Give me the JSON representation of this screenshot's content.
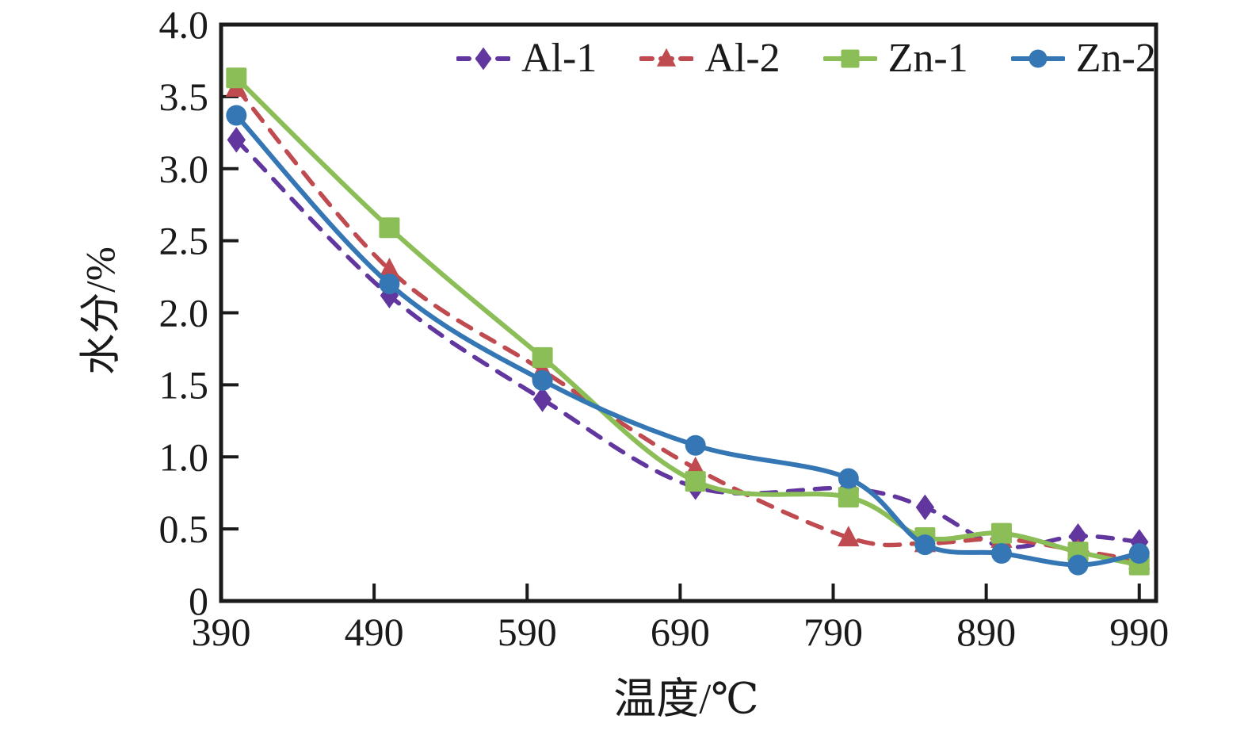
{
  "figure": {
    "background": "#ffffff",
    "frame_color": "#1a1a1a",
    "text_color": "#1a1a1a"
  },
  "chart_data": {
    "type": "line",
    "title": "",
    "xlabel": "温度/℃",
    "ylabel": "水分/%",
    "xlim": [
      390,
      1001
    ],
    "ylim": [
      0,
      4.0
    ],
    "x_ticks": [
      390,
      490,
      590,
      690,
      790,
      890,
      990
    ],
    "y_ticks": [
      "0",
      "0.5",
      "1.0",
      "1.5",
      "2.0",
      "2.5",
      "3.0",
      "3.5",
      "4.0"
    ],
    "grid": false,
    "legend_position": "top-inside",
    "x": [
      400,
      500,
      600,
      700,
      800,
      850,
      900,
      950,
      990
    ],
    "series": [
      {
        "name": "Al-1",
        "color": "#61369E",
        "line_style": "dashed",
        "marker": "diamond",
        "values": [
          3.2,
          2.12,
          1.4,
          0.79,
          0.78,
          0.65,
          0.38,
          0.45,
          0.41
        ]
      },
      {
        "name": "Al-2",
        "color": "#BF4B51",
        "line_style": "dashed",
        "marker": "triangle",
        "values": [
          3.56,
          2.3,
          1.6,
          0.92,
          0.44,
          0.4,
          0.43,
          0.35,
          0.28
        ]
      },
      {
        "name": "Zn-1",
        "color": "#8CBE57",
        "line_style": "solid",
        "marker": "square",
        "values": [
          3.63,
          2.59,
          1.69,
          0.83,
          0.72,
          0.44,
          0.47,
          0.34,
          0.25
        ]
      },
      {
        "name": "Zn-2",
        "color": "#3577B4",
        "line_style": "solid",
        "marker": "circle",
        "values": [
          3.37,
          2.2,
          1.53,
          1.08,
          0.85,
          0.39,
          0.33,
          0.25,
          0.33
        ]
      }
    ]
  }
}
